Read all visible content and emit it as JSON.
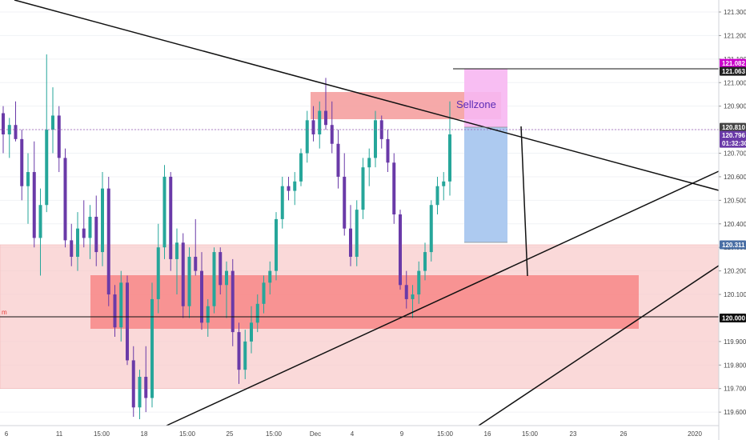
{
  "chart_data": {
    "type": "candlestick",
    "ylim": [
      119.55,
      121.35
    ],
    "y_ticks": [
      "121.300",
      "121.200",
      "121.100",
      "121.000",
      "120.900",
      "120.700",
      "120.600",
      "120.500",
      "120.400",
      "120.300",
      "120.200",
      "120.100",
      "119.900",
      "119.800",
      "119.700",
      "119.600"
    ],
    "x_ticks": [
      "6",
      "11",
      "15:00",
      "18",
      "15:00",
      "25",
      "15:00",
      "Dec",
      "4",
      "9",
      "15:00",
      "16",
      "15:00",
      "23",
      "26",
      "2020"
    ],
    "price_tags": [
      {
        "label": "121.082",
        "value": 121.082,
        "color": "#cc00cc"
      },
      {
        "label": "121.063",
        "value": 121.063,
        "color": "#222222"
      },
      {
        "label": "120.810",
        "value": 120.81,
        "color": "#444444"
      },
      {
        "label": "120.796",
        "value": 120.796,
        "color": "#6a3aa8"
      },
      {
        "label": "01:32:30",
        "value": 120.76,
        "color": "#6a3aa8"
      },
      {
        "label": "120.311",
        "value": 120.311,
        "color": "#4a6fa5"
      },
      {
        "label": "120.000",
        "value": 120.0,
        "color": "#111111"
      }
    ],
    "annotations": [
      {
        "text": "Sellzone",
        "type": "label"
      },
      {
        "text": "m",
        "type": "level-label"
      }
    ],
    "series": [
      {
        "candles": [
          [
            120.87,
            120.9,
            120.7,
            120.78
          ],
          [
            120.78,
            120.85,
            120.68,
            120.82
          ],
          [
            120.82,
            120.92,
            120.75,
            120.76
          ],
          [
            120.76,
            120.8,
            120.5,
            120.56
          ],
          [
            120.56,
            120.7,
            120.4,
            120.62
          ],
          [
            120.62,
            120.75,
            120.3,
            120.34
          ],
          [
            120.34,
            120.55,
            120.18,
            120.48
          ],
          [
            120.48,
            121.12,
            120.45,
            120.8
          ],
          [
            120.8,
            120.98,
            120.7,
            120.86
          ],
          [
            120.86,
            120.9,
            120.62,
            120.68
          ],
          [
            120.68,
            120.72,
            120.3,
            120.33
          ],
          [
            120.33,
            120.4,
            120.22,
            120.26
          ],
          [
            120.26,
            120.45,
            120.2,
            120.38
          ],
          [
            120.38,
            120.5,
            120.3,
            120.34
          ],
          [
            120.34,
            120.48,
            120.25,
            120.43
          ],
          [
            120.43,
            120.52,
            120.22,
            120.28
          ],
          [
            120.28,
            120.62,
            120.22,
            120.55
          ],
          [
            120.55,
            120.6,
            120.05,
            120.1
          ],
          [
            120.1,
            120.14,
            119.92,
            119.96
          ],
          [
            119.96,
            120.2,
            119.9,
            120.15
          ],
          [
            120.15,
            120.18,
            119.8,
            119.82
          ],
          [
            119.82,
            119.88,
            119.58,
            119.62
          ],
          [
            119.62,
            119.78,
            119.57,
            119.75
          ],
          [
            119.75,
            119.88,
            119.6,
            119.66
          ],
          [
            119.66,
            120.15,
            119.62,
            120.08
          ],
          [
            120.08,
            120.4,
            120.02,
            120.3
          ],
          [
            120.3,
            120.65,
            120.25,
            120.6
          ],
          [
            120.6,
            120.62,
            120.2,
            120.25
          ],
          [
            120.25,
            120.38,
            120.1,
            120.32
          ],
          [
            120.32,
            120.36,
            120.0,
            120.05
          ],
          [
            120.05,
            120.3,
            120.0,
            120.26
          ],
          [
            120.26,
            120.42,
            120.18,
            120.2
          ],
          [
            120.2,
            120.28,
            119.95,
            119.98
          ],
          [
            119.98,
            120.08,
            119.92,
            120.05
          ],
          [
            120.05,
            120.3,
            120.02,
            120.28
          ],
          [
            120.28,
            120.3,
            120.1,
            120.14
          ],
          [
            120.14,
            120.24,
            120.0,
            120.2
          ],
          [
            120.2,
            120.25,
            119.88,
            119.94
          ],
          [
            119.94,
            119.98,
            119.72,
            119.78
          ],
          [
            119.78,
            119.95,
            119.74,
            119.9
          ],
          [
            119.9,
            120.05,
            119.85,
            119.98
          ],
          [
            119.98,
            120.1,
            119.94,
            120.06
          ],
          [
            120.06,
            120.18,
            120.02,
            120.15
          ],
          [
            120.15,
            120.24,
            120.1,
            120.2
          ],
          [
            120.2,
            120.45,
            120.16,
            120.42
          ],
          [
            120.42,
            120.6,
            120.38,
            120.56
          ],
          [
            120.56,
            120.6,
            120.5,
            120.54
          ],
          [
            120.54,
            120.62,
            120.48,
            120.58
          ],
          [
            120.58,
            120.72,
            120.56,
            120.7
          ],
          [
            120.7,
            120.88,
            120.66,
            120.84
          ],
          [
            120.84,
            120.9,
            120.75,
            120.78
          ],
          [
            120.78,
            120.92,
            120.72,
            120.88
          ],
          [
            120.88,
            121.02,
            120.8,
            120.82
          ],
          [
            120.82,
            120.92,
            120.7,
            120.74
          ],
          [
            120.74,
            120.8,
            120.55,
            120.6
          ],
          [
            120.6,
            120.7,
            120.35,
            120.38
          ],
          [
            120.38,
            120.48,
            120.22,
            120.26
          ],
          [
            120.26,
            120.5,
            120.22,
            120.46
          ],
          [
            120.46,
            120.68,
            120.42,
            120.64
          ],
          [
            120.64,
            120.72,
            120.56,
            120.68
          ],
          [
            120.68,
            120.88,
            120.64,
            120.84
          ],
          [
            120.84,
            120.86,
            120.72,
            120.76
          ],
          [
            120.76,
            120.8,
            120.62,
            120.66
          ],
          [
            120.66,
            120.7,
            120.4,
            120.44
          ],
          [
            120.44,
            120.46,
            120.12,
            120.14
          ],
          [
            120.14,
            120.2,
            120.04,
            120.08
          ],
          [
            120.08,
            120.14,
            120.0,
            120.1
          ],
          [
            120.1,
            120.24,
            120.06,
            120.2
          ],
          [
            120.2,
            120.32,
            120.16,
            120.28
          ],
          [
            120.28,
            120.5,
            120.24,
            120.48
          ],
          [
            120.48,
            120.6,
            120.44,
            120.56
          ],
          [
            120.56,
            120.62,
            120.5,
            120.58
          ],
          [
            120.58,
            120.92,
            120.52,
            120.78
          ]
        ]
      }
    ]
  }
}
